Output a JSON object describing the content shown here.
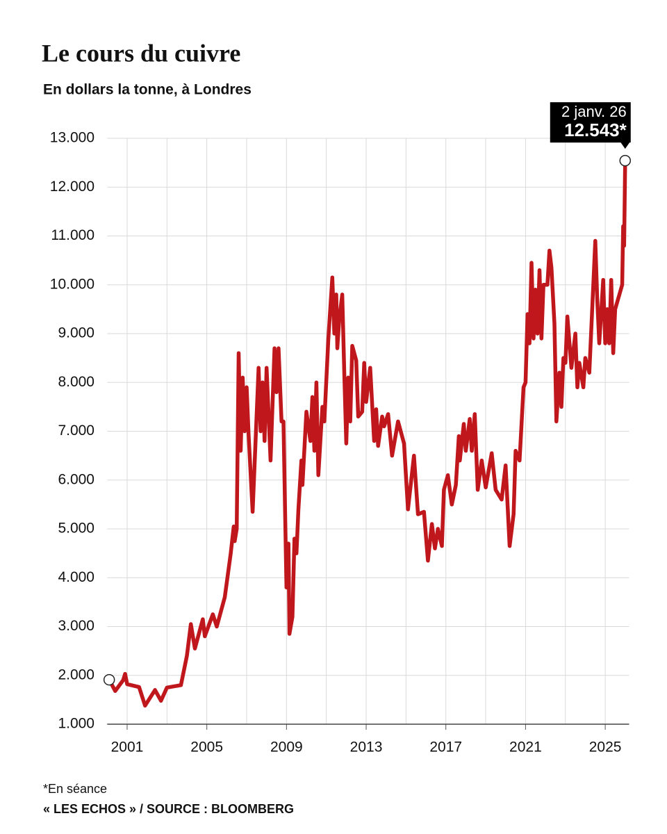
{
  "chart_data": {
    "type": "line",
    "title": "Le cours du cuivre",
    "subtitle": "En dollars la tonne, à Londres",
    "footnote": "*En séance",
    "source": "« LES ECHOS » / SOURCE : BLOOMBERG",
    "annotation": {
      "date": "2 janv. 26",
      "value": "12.543*"
    },
    "x": [
      2000.1,
      2000.4,
      2000.8,
      2000.9,
      2001.0,
      2001.6,
      2001.9,
      2002.4,
      2002.7,
      2003.0,
      2003.7,
      2004.0,
      2004.2,
      2004.4,
      2004.8,
      2004.9,
      2005.3,
      2005.5,
      2005.9,
      2006.2,
      2006.35,
      2006.4,
      2006.5,
      2006.6,
      2006.7,
      2006.8,
      2006.9,
      2007.0,
      2007.1,
      2007.3,
      2007.6,
      2007.7,
      2007.8,
      2007.9,
      2008.0,
      2008.2,
      2008.4,
      2008.5,
      2008.6,
      2008.75,
      2008.85,
      2009.0,
      2009.1,
      2009.15,
      2009.3,
      2009.4,
      2009.5,
      2009.6,
      2009.75,
      2009.8,
      2010.0,
      2010.2,
      2010.3,
      2010.4,
      2010.5,
      2010.6,
      2010.8,
      2010.9,
      2011.1,
      2011.3,
      2011.4,
      2011.5,
      2011.55,
      2011.65,
      2011.8,
      2011.9,
      2012.0,
      2012.1,
      2012.2,
      2012.3,
      2012.5,
      2012.6,
      2012.8,
      2012.9,
      2013.0,
      2013.2,
      2013.4,
      2013.5,
      2013.6,
      2013.8,
      2013.9,
      2014.1,
      2014.3,
      2014.6,
      2014.9,
      2015.1,
      2015.4,
      2015.6,
      2015.9,
      2016.1,
      2016.3,
      2016.45,
      2016.6,
      2016.8,
      2016.9,
      2017.1,
      2017.3,
      2017.5,
      2017.65,
      2017.7,
      2017.9,
      2018.0,
      2018.2,
      2018.3,
      2018.45,
      2018.6,
      2018.8,
      2019.0,
      2019.3,
      2019.5,
      2019.8,
      2020.0,
      2020.2,
      2020.4,
      2020.5,
      2020.7,
      2020.9,
      2021.0,
      2021.1,
      2021.2,
      2021.3,
      2021.4,
      2021.5,
      2021.6,
      2021.7,
      2021.8,
      2021.9,
      2022.1,
      2022.2,
      2022.3,
      2022.45,
      2022.55,
      2022.7,
      2022.8,
      2022.9,
      2023.0,
      2023.1,
      2023.3,
      2023.5,
      2023.6,
      2023.7,
      2023.9,
      2024.0,
      2024.2,
      2024.5,
      2024.6,
      2024.7,
      2024.9,
      2025.0,
      2025.1,
      2025.2,
      2025.3,
      2025.4,
      2025.5,
      2025.85,
      2025.9,
      2025.95,
      2026.0
    ],
    "series": [
      {
        "name": "Cuivre",
        "color": "#c0171c",
        "values": [
          1910,
          1680,
          1900,
          2030,
          1820,
          1760,
          1380,
          1700,
          1480,
          1750,
          1800,
          2400,
          3050,
          2550,
          3150,
          2800,
          3250,
          3000,
          3600,
          4500,
          5050,
          4750,
          5000,
          8600,
          6600,
          8100,
          7000,
          7900,
          6900,
          5350,
          8300,
          7000,
          8000,
          6800,
          8300,
          6400,
          8700,
          7800,
          8700,
          7200,
          7200,
          3800,
          4700,
          2850,
          3200,
          4800,
          4500,
          5400,
          6400,
          5900,
          7400,
          6800,
          7700,
          6600,
          8000,
          6100,
          7500,
          7200,
          8900,
          10150,
          9000,
          9800,
          8700,
          9300,
          9800,
          8200,
          6750,
          8100,
          7200,
          8750,
          8450,
          7300,
          7400,
          8400,
          7600,
          8300,
          6800,
          7450,
          6700,
          7300,
          7100,
          7350,
          6500,
          7200,
          6750,
          5400,
          6500,
          5300,
          5350,
          4350,
          5100,
          4600,
          5000,
          4650,
          5800,
          6100,
          5500,
          5900,
          6900,
          6400,
          7150,
          6600,
          7250,
          6600,
          7350,
          5800,
          6400,
          5850,
          6550,
          5800,
          5600,
          6300,
          4650,
          5300,
          6600,
          6400,
          7900,
          8000,
          9400,
          8800,
          10450,
          8900,
          9900,
          9000,
          10300,
          8900,
          10000,
          10000,
          10700,
          10350,
          9200,
          7200,
          8200,
          7500,
          8500,
          8400,
          9350,
          8300,
          9000,
          7900,
          8400,
          7900,
          8500,
          8200,
          10900,
          9700,
          8800,
          10100,
          8800,
          9500,
          8800,
          10100,
          8600,
          9500,
          10000,
          11200,
          10800,
          12543
        ]
      }
    ],
    "xlim": [
      2000,
      2026.2
    ],
    "xticks": [
      2001,
      2005,
      2009,
      2013,
      2017,
      2021,
      2025
    ],
    "xgrid": [
      2001,
      2003,
      2005,
      2007,
      2009,
      2011,
      2013,
      2015,
      2017,
      2019,
      2021,
      2023,
      2025
    ],
    "ylim": [
      1000,
      13000
    ],
    "yticks": [
      {
        "value": 1000,
        "label": "1.000"
      },
      {
        "value": 2000,
        "label": "2.000"
      },
      {
        "value": 3000,
        "label": "3.000"
      },
      {
        "value": 4000,
        "label": "4.000"
      },
      {
        "value": 5000,
        "label": "5.000"
      },
      {
        "value": 6000,
        "label": "6.000"
      },
      {
        "value": 7000,
        "label": "7.000"
      },
      {
        "value": 8000,
        "label": "8.000"
      },
      {
        "value": 9000,
        "label": "9.000"
      },
      {
        "value": 10000,
        "label": "10.000"
      },
      {
        "value": 11000,
        "label": "11.000"
      },
      {
        "value": 12000,
        "label": "12.000"
      },
      {
        "value": 13000,
        "label": "13.000"
      }
    ],
    "grid": true
  }
}
